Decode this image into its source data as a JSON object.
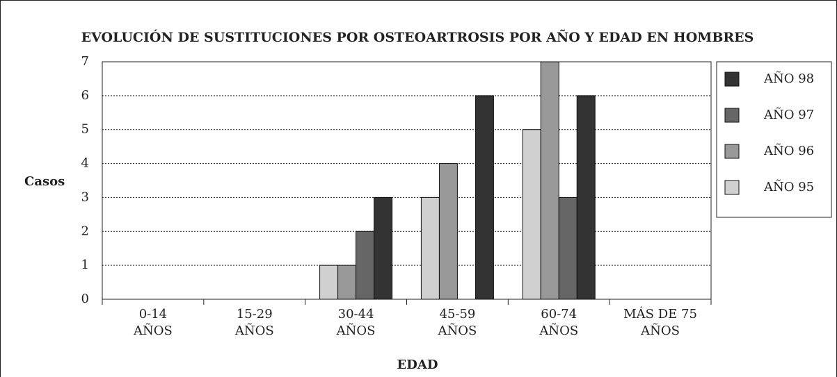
{
  "chart_data": {
    "type": "bar",
    "title": "EVOLUCIÓN DE SUSTITUCIONES POR OSTEOARTROSIS POR AÑO Y EDAD EN HOMBRES",
    "y_label": "Casos",
    "x_label": "EDAD",
    "categories": [
      [
        "0-14",
        "AÑOS"
      ],
      [
        "15-29",
        "AÑOS"
      ],
      [
        "30-44",
        "AÑOS"
      ],
      [
        "45-59",
        "AÑOS"
      ],
      [
        "60-74",
        "AÑOS"
      ],
      [
        "MÁS DE 75",
        "AÑOS"
      ]
    ],
    "series": [
      {
        "name": "AÑO 95",
        "color": "#d0d0d0",
        "values": [
          0,
          0,
          1,
          3,
          5,
          0
        ]
      },
      {
        "name": "AÑO 96",
        "color": "#999999",
        "values": [
          0,
          0,
          1,
          4,
          7,
          0
        ]
      },
      {
        "name": "AÑO 97",
        "color": "#666666",
        "values": [
          0,
          0,
          2,
          0,
          3,
          0
        ]
      },
      {
        "name": "AÑO 98",
        "color": "#333333",
        "values": [
          0,
          0,
          3,
          6,
          6,
          0
        ]
      }
    ],
    "ylim": [
      0,
      7
    ],
    "yticks": [
      0,
      1,
      2,
      3,
      4,
      5,
      6,
      7
    ],
    "grid": true,
    "legend": "right"
  }
}
